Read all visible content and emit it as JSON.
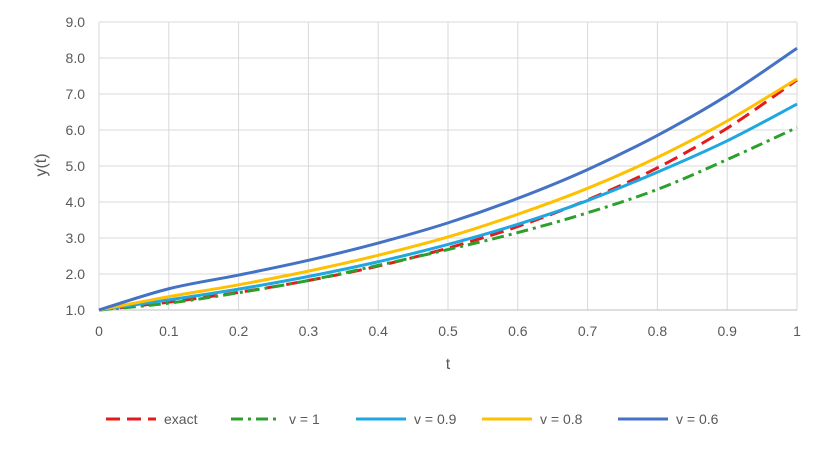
{
  "chart_data": {
    "type": "line",
    "title": "",
    "xlabel": "t",
    "ylabel": "y(t)",
    "xlim": [
      0,
      1
    ],
    "ylim": [
      1.0,
      9.0
    ],
    "grid": true,
    "legend_position": "bottom",
    "x_ticks": [
      0,
      0.1,
      0.2,
      0.3,
      0.4,
      0.5,
      0.6,
      0.7,
      0.8,
      0.9,
      1
    ],
    "x_tick_labels": [
      "0",
      "0.1",
      "0.2",
      "0.3",
      "0.4",
      "0.5",
      "0.6",
      "0.7",
      "0.8",
      "0.9",
      "1"
    ],
    "y_ticks": [
      1,
      2,
      3,
      4,
      5,
      6,
      7,
      8,
      9
    ],
    "y_tick_labels": [
      "1.0",
      "2.0",
      "3.0",
      "4.0",
      "5.0",
      "6.0",
      "7.0",
      "8.0",
      "9.0"
    ],
    "x": [
      0,
      0.1,
      0.2,
      0.3,
      0.4,
      0.5,
      0.6,
      0.7,
      0.8,
      0.9,
      1
    ],
    "series": [
      {
        "name": "exact",
        "color": "#e41a1c",
        "dash": "dash",
        "values": [
          1.0,
          1.22,
          1.49,
          1.82,
          2.22,
          2.72,
          3.32,
          4.06,
          4.95,
          6.05,
          7.39
        ]
      },
      {
        "name": "v = 1",
        "color": "#2ca02c",
        "dash": "dashdot",
        "values": [
          1.0,
          1.19,
          1.48,
          1.82,
          2.24,
          2.68,
          3.15,
          3.7,
          4.35,
          5.18,
          6.07
        ]
      },
      {
        "name": "v = 0.9",
        "color": "#1ea7e1",
        "dash": "solid",
        "values": [
          1.0,
          1.28,
          1.58,
          1.93,
          2.34,
          2.82,
          3.38,
          4.04,
          4.83,
          5.7,
          6.72
        ]
      },
      {
        "name": "v = 0.8",
        "color": "#ffc000",
        "dash": "solid",
        "values": [
          1.0,
          1.37,
          1.7,
          2.08,
          2.52,
          3.03,
          3.66,
          4.38,
          5.24,
          6.25,
          7.42
        ]
      },
      {
        "name": "v = 0.6",
        "color": "#4472c4",
        "dash": "solid",
        "values": [
          1.0,
          1.59,
          1.97,
          2.38,
          2.86,
          3.42,
          4.1,
          4.9,
          5.85,
          6.96,
          8.27
        ]
      }
    ]
  }
}
